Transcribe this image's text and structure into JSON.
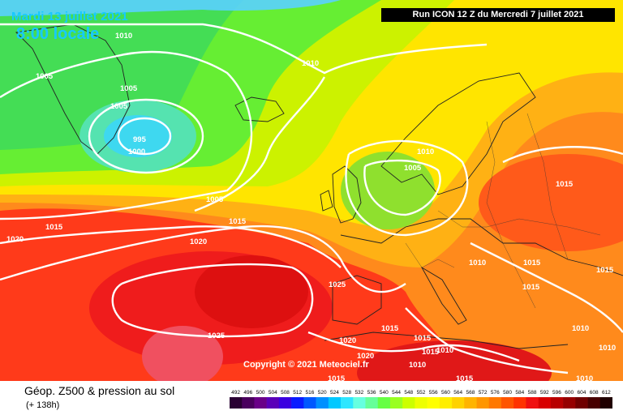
{
  "header": {
    "date": "Mardi 13 juillet 2021",
    "local_time": "8:00 locale",
    "run_info": "Run ICON 12 Z du Mercredi 7 juillet 2021"
  },
  "copyright": "Copyright © 2021 Meteociel.fr",
  "legend": {
    "title": "Géop. Z500 & pression au sol",
    "subtitle": "(+ 138h)",
    "scale": [
      "492",
      "496",
      "500",
      "504",
      "508",
      "512",
      "516",
      "520",
      "524",
      "528",
      "532",
      "536",
      "540",
      "544",
      "548",
      "552",
      "556",
      "560",
      "564",
      "568",
      "572",
      "576",
      "580",
      "584",
      "588",
      "592",
      "596",
      "600",
      "604",
      "608",
      "612"
    ],
    "colors": [
      "#2a0033",
      "#4a005e",
      "#6a0088",
      "#5a00b8",
      "#3a00e0",
      "#0a1cff",
      "#0058ff",
      "#0090ff",
      "#00c8ff",
      "#2ee6ff",
      "#66ffe0",
      "#66ff99",
      "#66ff44",
      "#99ff22",
      "#ccff00",
      "#eeff00",
      "#ffff00",
      "#ffee00",
      "#ffd200",
      "#ffb400",
      "#ff9600",
      "#ff7800",
      "#ff5500",
      "#ff3300",
      "#f01010",
      "#d80000",
      "#b80000",
      "#960000",
      "#700000",
      "#480000",
      "#200000"
    ]
  },
  "pressure_labels": [
    "1010",
    "1005",
    "995",
    "1000",
    "1005",
    "1005",
    "1010",
    "1010",
    "1005",
    "1005",
    "1015",
    "1020",
    "1015",
    "1020",
    "1025",
    "1025",
    "1010",
    "1015",
    "1015",
    "1015",
    "1015",
    "1015",
    "1015",
    "1010",
    "1020",
    "1020",
    "1015",
    "1015",
    "1010",
    "1015",
    "1010",
    "1010",
    "1010"
  ]
}
